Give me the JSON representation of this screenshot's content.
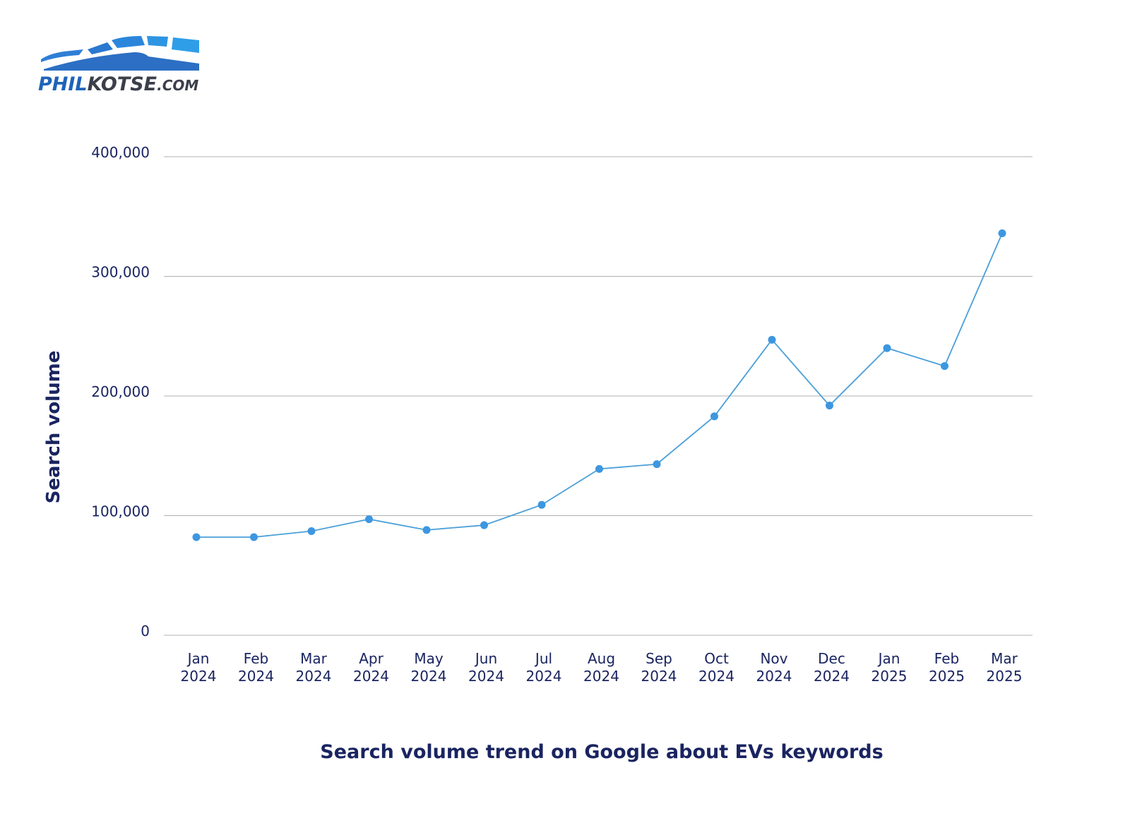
{
  "logo": {
    "text_main": "PHIL",
    "text_dark": "KOTSE",
    "text_suffix": ".COM"
  },
  "chart_data": {
    "type": "line",
    "title": "Search volume trend on Google about EVs keywords",
    "xlabel": "",
    "ylabel": "Search volume",
    "ylim": [
      0,
      400000
    ],
    "yticks": [
      0,
      100000,
      200000,
      300000,
      400000
    ],
    "ytick_labels": [
      "0",
      "100,000",
      "200,000",
      "300,000",
      "400,000"
    ],
    "grid": true,
    "categories": [
      [
        "Jan",
        "2024"
      ],
      [
        "Feb",
        "2024"
      ],
      [
        "Mar",
        "2024"
      ],
      [
        "Apr",
        "2024"
      ],
      [
        "May",
        "2024"
      ],
      [
        "Jun",
        "2024"
      ],
      [
        "Jul",
        "2024"
      ],
      [
        "Aug",
        "2024"
      ],
      [
        "Sep",
        "2024"
      ],
      [
        "Oct",
        "2024"
      ],
      [
        "Nov",
        "2024"
      ],
      [
        "Dec",
        "2024"
      ],
      [
        "Jan",
        "2025"
      ],
      [
        "Feb",
        "2025"
      ],
      [
        "Mar",
        "2025"
      ]
    ],
    "values": [
      82000,
      82000,
      87000,
      97000,
      88000,
      92000,
      109000,
      139000,
      143000,
      183000,
      247000,
      192000,
      240000,
      225000,
      336000
    ],
    "colors": {
      "line": "#4a9fd8",
      "marker": "#3d97e0",
      "text": "#1a2460",
      "grid": "#b0b0b0"
    }
  }
}
